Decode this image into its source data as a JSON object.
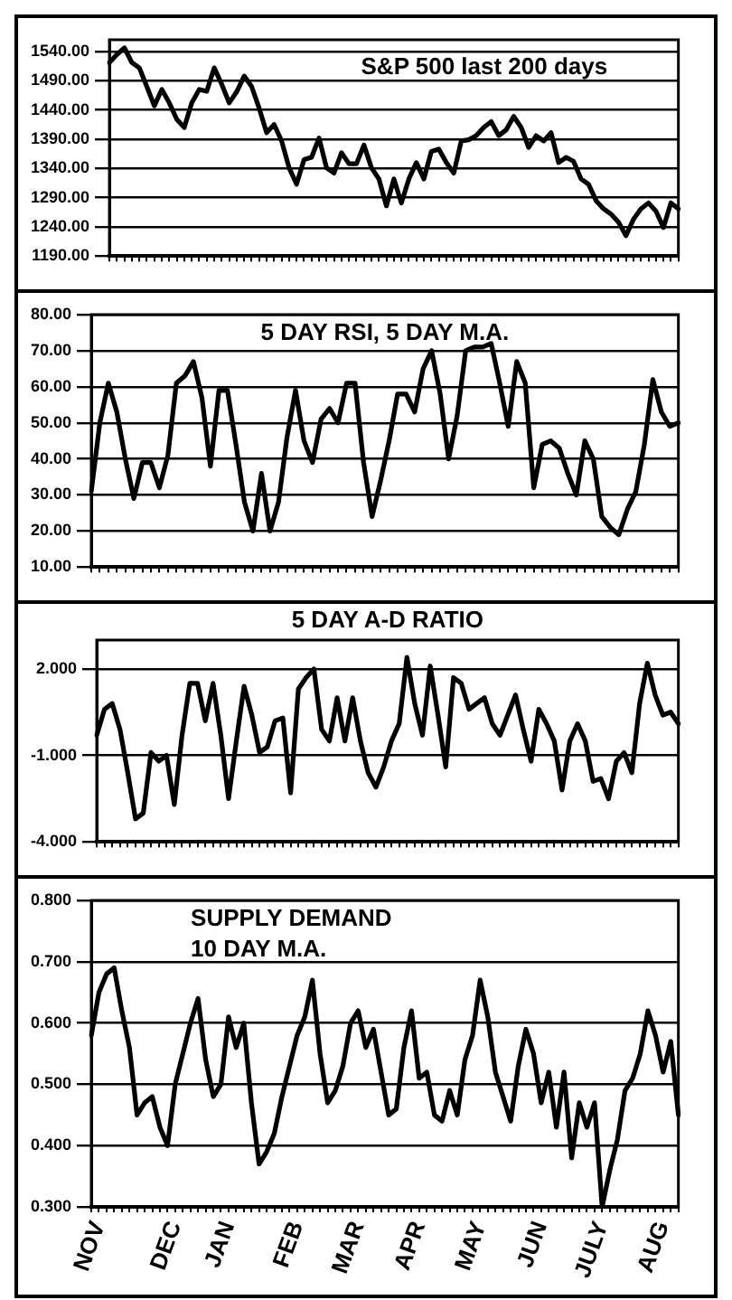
{
  "chart_data": [
    {
      "type": "line",
      "title": "S&P 500 last 200 days",
      "grid": "y",
      "categories": [
        null,
        null,
        null,
        null,
        null,
        null,
        null,
        null,
        null,
        null,
        null,
        null,
        null,
        null,
        null,
        null,
        null,
        null,
        null,
        null,
        null,
        null,
        null,
        null,
        null,
        null,
        null,
        null,
        null,
        null,
        null,
        null,
        null,
        null,
        null,
        null,
        null,
        null,
        null,
        null,
        null,
        null,
        null,
        null,
        null,
        null,
        null,
        null,
        null,
        null,
        null,
        null,
        null,
        null,
        null,
        null,
        null,
        null,
        null,
        null,
        null,
        null,
        null,
        null,
        null,
        null,
        null,
        null,
        null,
        null,
        null,
        null,
        null,
        null,
        null,
        null,
        null
      ],
      "ylim": [
        1190,
        1560
      ],
      "yticks": [
        {
          "value": 1190,
          "label": "1190.00"
        },
        {
          "value": 1240,
          "label": "1240.00"
        },
        {
          "value": 1290,
          "label": "1290.00"
        },
        {
          "value": 1340,
          "label": "1340.00"
        },
        {
          "value": 1390,
          "label": "1390.00"
        },
        {
          "value": 1440,
          "label": "1440.00"
        },
        {
          "value": 1490,
          "label": "1490.00"
        },
        {
          "value": 1540,
          "label": "1540.00"
        }
      ],
      "series": [
        {
          "color": "#000000",
          "values": [
            1521,
            1535,
            1546,
            1521,
            1512,
            1480,
            1447,
            1475,
            1452,
            1424,
            1410,
            1452,
            1475,
            1472,
            1512,
            1484,
            1452,
            1471,
            1498,
            1480,
            1443,
            1401,
            1415,
            1387,
            1341,
            1313,
            1355,
            1359,
            1392,
            1341,
            1332,
            1367,
            1348,
            1348,
            1380,
            1341,
            1322,
            1276,
            1322,
            1281,
            1322,
            1350,
            1322,
            1369,
            1373,
            1350,
            1332,
            1387,
            1389,
            1396,
            1410,
            1420,
            1396,
            1406,
            1429,
            1410,
            1376,
            1396,
            1387,
            1401,
            1350,
            1359,
            1352,
            1322,
            1313,
            1285,
            1271,
            1262,
            1248,
            1225,
            1253,
            1271,
            1281,
            1267,
            1239,
            1281,
            1271
          ]
        }
      ]
    },
    {
      "type": "line",
      "title": "5 DAY RSI, 5 DAY M.A.",
      "grid": "y",
      "categories": [
        null,
        null,
        null,
        null,
        null,
        null,
        null,
        null,
        null,
        null,
        null,
        null,
        null,
        null,
        null,
        null,
        null,
        null,
        null,
        null,
        null,
        null,
        null,
        null,
        null,
        null,
        null,
        null,
        null,
        null,
        null,
        null,
        null,
        null,
        null,
        null,
        null,
        null,
        null,
        null,
        null,
        null,
        null,
        null,
        null,
        null,
        null,
        null,
        null,
        null,
        null,
        null,
        null,
        null,
        null,
        null,
        null,
        null,
        null,
        null,
        null,
        null,
        null,
        null,
        null,
        null,
        null,
        null,
        null,
        null
      ],
      "ylim": [
        10,
        80
      ],
      "yticks": [
        {
          "value": 10,
          "label": "10.00"
        },
        {
          "value": 20,
          "label": "20.00"
        },
        {
          "value": 30,
          "label": "30.00"
        },
        {
          "value": 40,
          "label": "40.00"
        },
        {
          "value": 50,
          "label": "50.00"
        },
        {
          "value": 60,
          "label": "60.00"
        },
        {
          "value": 70,
          "label": "70.00"
        },
        {
          "value": 80,
          "label": "80.00"
        }
      ],
      "series": [
        {
          "color": "#000000",
          "values": [
            31,
            50,
            61,
            53,
            40,
            29,
            39,
            39,
            32,
            41,
            61,
            63,
            67,
            57,
            38,
            59,
            59,
            44,
            28,
            20,
            36,
            20,
            28,
            46,
            59,
            45,
            39,
            51,
            54,
            50,
            61,
            61,
            39,
            24,
            34,
            45,
            58,
            58,
            53,
            65,
            70,
            58,
            40,
            52,
            70,
            71,
            71,
            72,
            61,
            49,
            67,
            61,
            32,
            44,
            45,
            43,
            36,
            30,
            45,
            40,
            24,
            21,
            19,
            26,
            31,
            44,
            62,
            53,
            49,
            50
          ]
        }
      ]
    },
    {
      "type": "line",
      "title": "5 DAY A-D RATIO",
      "grid": "y",
      "categories": [
        null,
        null,
        null,
        null,
        null,
        null,
        null,
        null,
        null,
        null,
        null,
        null,
        null,
        null,
        null,
        null,
        null,
        null,
        null,
        null,
        null,
        null,
        null,
        null,
        null,
        null,
        null,
        null,
        null,
        null,
        null,
        null,
        null,
        null,
        null,
        null,
        null,
        null,
        null,
        null,
        null,
        null,
        null,
        null,
        null,
        null,
        null,
        null,
        null,
        null,
        null,
        null,
        null,
        null,
        null,
        null,
        null,
        null,
        null,
        null,
        null,
        null,
        null,
        null,
        null,
        null,
        null,
        null,
        null,
        null,
        null,
        null,
        null,
        null,
        null,
        null
      ],
      "ylim": [
        -4,
        3
      ],
      "yticks": [
        {
          "value": -4,
          "label": "-4.000"
        },
        {
          "value": -1,
          "label": "-1.000"
        },
        {
          "value": 2,
          "label": "2.000"
        }
      ],
      "series": [
        {
          "color": "#000000",
          "values": [
            -0.3,
            0.6,
            0.8,
            -0.1,
            -1.6,
            -3.2,
            -3.0,
            -0.9,
            -1.2,
            -1.0,
            -2.7,
            -0.3,
            1.5,
            1.5,
            0.2,
            1.5,
            -0.3,
            -2.5,
            -0.5,
            1.4,
            0.4,
            -0.9,
            -0.7,
            0.2,
            0.3,
            -2.3,
            1.3,
            1.7,
            2.0,
            -0.1,
            -0.5,
            1.0,
            -0.5,
            1.0,
            -0.5,
            -1.6,
            -2.1,
            -1.4,
            -0.5,
            0.1,
            2.4,
            0.8,
            -0.3,
            2.1,
            0.4,
            -1.4,
            1.7,
            1.5,
            0.6,
            0.8,
            1.0,
            0.1,
            -0.3,
            0.4,
            1.1,
            -0.1,
            -1.2,
            0.6,
            0.1,
            -0.5,
            -2.2,
            -0.5,
            0.1,
            -0.5,
            -1.9,
            -1.8,
            -2.5,
            -1.2,
            -0.9,
            -1.6,
            0.8,
            2.2,
            1.1,
            0.4,
            0.5,
            0.1
          ]
        }
      ]
    },
    {
      "type": "line",
      "title": "SUPPLY DEMAND\n10 DAY M.A.",
      "grid": "y",
      "categories": [
        null,
        "NOV",
        null,
        null,
        null,
        null,
        null,
        null,
        null,
        null,
        null,
        "DEC",
        null,
        null,
        null,
        null,
        null,
        null,
        "JAN",
        null,
        null,
        null,
        null,
        null,
        null,
        null,
        null,
        "FEB",
        null,
        null,
        null,
        null,
        null,
        null,
        null,
        "MAR",
        null,
        null,
        null,
        null,
        null,
        null,
        null,
        "APR",
        null,
        null,
        null,
        null,
        null,
        null,
        null,
        "MAY",
        null,
        null,
        null,
        null,
        null,
        null,
        null,
        "JUN",
        null,
        null,
        null,
        null,
        null,
        null,
        null,
        "JULY",
        null,
        null,
        null,
        null,
        null,
        null,
        null,
        "AUG",
        null,
        null
      ],
      "ylim": [
        0.3,
        0.8
      ],
      "yticks": [
        {
          "value": 0.3,
          "label": "0.300"
        },
        {
          "value": 0.4,
          "label": "0.400"
        },
        {
          "value": 0.5,
          "label": "0.500"
        },
        {
          "value": 0.6,
          "label": "0.600"
        },
        {
          "value": 0.7,
          "label": "0.700"
        },
        {
          "value": 0.8,
          "label": "0.800"
        }
      ],
      "series": [
        {
          "color": "#000000",
          "values": [
            0.58,
            0.65,
            0.68,
            0.69,
            0.62,
            0.56,
            0.45,
            0.47,
            0.48,
            0.43,
            0.4,
            0.5,
            0.55,
            0.6,
            0.64,
            0.54,
            0.48,
            0.5,
            0.61,
            0.56,
            0.6,
            0.47,
            0.37,
            0.39,
            0.42,
            0.48,
            0.53,
            0.58,
            0.61,
            0.67,
            0.55,
            0.47,
            0.49,
            0.53,
            0.6,
            0.62,
            0.56,
            0.59,
            0.52,
            0.45,
            0.46,
            0.56,
            0.62,
            0.51,
            0.52,
            0.45,
            0.44,
            0.49,
            0.45,
            0.54,
            0.58,
            0.67,
            0.61,
            0.52,
            0.48,
            0.44,
            0.53,
            0.59,
            0.55,
            0.47,
            0.52,
            0.43,
            0.52,
            0.38,
            0.47,
            0.43,
            0.47,
            0.3,
            0.36,
            0.41,
            0.49,
            0.51,
            0.55,
            0.62,
            0.58,
            0.52,
            0.57,
            0.45
          ]
        }
      ]
    }
  ]
}
